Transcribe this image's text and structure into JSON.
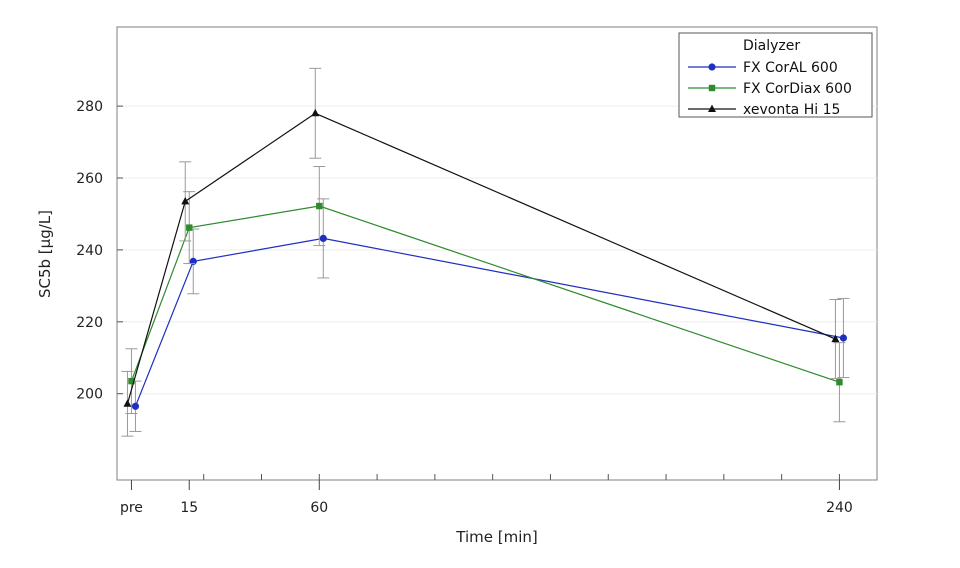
{
  "chart_data": {
    "type": "line",
    "xlabel": "Time [min]",
    "ylabel": "SC5b [µg/L]",
    "x_ticks": [
      {
        "value": -5,
        "label": "pre"
      },
      {
        "value": 15,
        "label": "15"
      },
      {
        "value": 60,
        "label": "60"
      },
      {
        "value": 240,
        "label": "240"
      }
    ],
    "y_ticks": [
      200,
      220,
      240,
      260,
      280
    ],
    "xlim": [
      -10,
      253
    ],
    "ylim": [
      176,
      302
    ],
    "grid": "horizontal",
    "legend": {
      "title": "Dialyzer",
      "placement": "top-right"
    },
    "series": [
      {
        "name": "FX CorAL 600",
        "color": "#1f2fbf",
        "marker": "circle",
        "points": [
          {
            "x": -5,
            "y": 196.5,
            "err": 7
          },
          {
            "x": 15,
            "y": 236.8,
            "err": 9
          },
          {
            "x": 60,
            "y": 243.2,
            "err": 11
          },
          {
            "x": 240,
            "y": 215.5,
            "err": 11
          }
        ]
      },
      {
        "name": "FX CorDiax 600",
        "color": "#2e8b2e",
        "marker": "square",
        "points": [
          {
            "x": -5,
            "y": 203.5,
            "err": 9
          },
          {
            "x": 15,
            "y": 246.2,
            "err": 10
          },
          {
            "x": 60,
            "y": 252.2,
            "err": 11
          },
          {
            "x": 240,
            "y": 203.2,
            "err": 11
          }
        ]
      },
      {
        "name": "xevonta Hi 15",
        "color": "#111111",
        "marker": "triangle",
        "points": [
          {
            "x": -5,
            "y": 197.2,
            "err": 9
          },
          {
            "x": 15,
            "y": 253.5,
            "err": 11
          },
          {
            "x": 60,
            "y": 278,
            "err": 12.5
          },
          {
            "x": 240,
            "y": 215.2,
            "err": 11
          }
        ]
      }
    ]
  }
}
